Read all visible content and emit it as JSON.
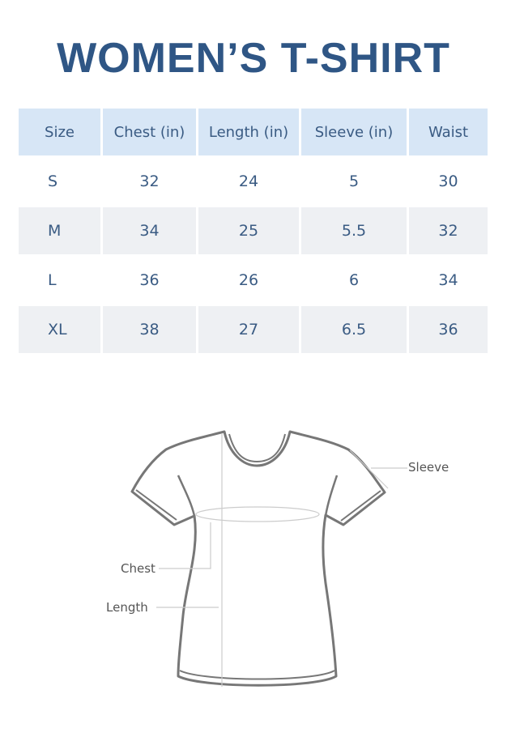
{
  "title": "WOMEN’S T-SHIRT",
  "table": {
    "headers": [
      "Size",
      "Chest (in)",
      "Length (in)",
      "Sleeve (in)",
      "Waist"
    ],
    "rows": [
      [
        "S",
        "32",
        "24",
        "5",
        "30"
      ],
      [
        "M",
        "34",
        "25",
        "5.5",
        "32"
      ],
      [
        "L",
        "36",
        "26",
        "6",
        "34"
      ],
      [
        "XL",
        "38",
        "27",
        "6.5",
        "36"
      ]
    ]
  },
  "diagram": {
    "sleeve": "Sleeve",
    "chest": "Chest",
    "length": "Length"
  },
  "colors": {
    "title": "#2f5685",
    "header_bg": "#d7e6f6",
    "alt_row_bg": "#eef0f3",
    "text": "#3a5b83"
  }
}
